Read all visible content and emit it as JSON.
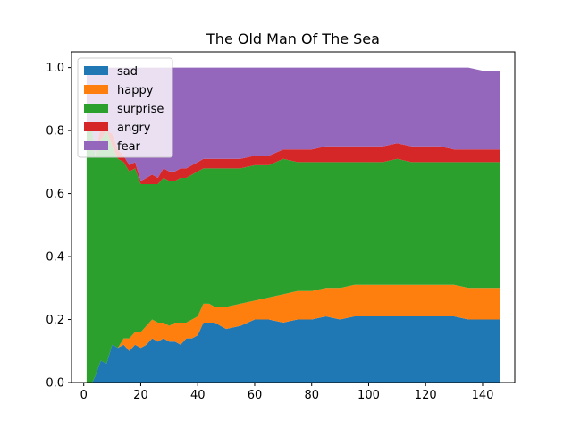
{
  "chart_data": {
    "type": "area",
    "stacked": true,
    "title": "The Old Man Of The Sea",
    "xlabel": "",
    "ylabel": "",
    "xlim": [
      -4.3,
      151.3
    ],
    "ylim": [
      0,
      1.05
    ],
    "x_ticks": [
      {
        "value": 0,
        "label": "0"
      },
      {
        "value": 20,
        "label": "20"
      },
      {
        "value": 40,
        "label": "40"
      },
      {
        "value": 60,
        "label": "60"
      },
      {
        "value": 80,
        "label": "80"
      },
      {
        "value": 100,
        "label": "100"
      },
      {
        "value": 120,
        "label": "120"
      },
      {
        "value": 140,
        "label": "140"
      }
    ],
    "y_ticks": [
      {
        "value": 0,
        "label": "0.0"
      },
      {
        "value": 0.2,
        "label": "0.2"
      },
      {
        "value": 0.4,
        "label": "0.4"
      },
      {
        "value": 0.6,
        "label": "0.6"
      },
      {
        "value": 0.8,
        "label": "0.8"
      },
      {
        "value": 1.0,
        "label": "1.0"
      }
    ],
    "grid": false,
    "legend_position": "top-left",
    "x": [
      1,
      3,
      4,
      6,
      8,
      10,
      12,
      14,
      16,
      18,
      20,
      22,
      24,
      26,
      28,
      30,
      32,
      34,
      36,
      38,
      40,
      42,
      44,
      46,
      48,
      50,
      55,
      60,
      65,
      70,
      75,
      80,
      85,
      90,
      95,
      100,
      105,
      110,
      115,
      120,
      125,
      130,
      135,
      140,
      146
    ],
    "series": [
      {
        "name": "sad",
        "color": "#1f77b4",
        "values": [
          0,
          0,
          0.02,
          0.07,
          0.06,
          0.12,
          0.11,
          0.12,
          0.1,
          0.12,
          0.11,
          0.12,
          0.14,
          0.13,
          0.14,
          0.13,
          0.13,
          0.12,
          0.14,
          0.14,
          0.15,
          0.19,
          0.19,
          0.19,
          0.18,
          0.17,
          0.18,
          0.2,
          0.2,
          0.19,
          0.2,
          0.2,
          0.21,
          0.2,
          0.21,
          0.21,
          0.21,
          0.21,
          0.21,
          0.21,
          0.21,
          0.21,
          0.2,
          0.2,
          0.2
        ]
      },
      {
        "name": "happy",
        "color": "#ff7f0e",
        "values": [
          0,
          0,
          0,
          0,
          0,
          0,
          0,
          0.02,
          0.04,
          0.04,
          0.05,
          0.06,
          0.06,
          0.06,
          0.05,
          0.05,
          0.06,
          0.07,
          0.05,
          0.06,
          0.06,
          0.06,
          0.06,
          0.05,
          0.06,
          0.07,
          0.07,
          0.06,
          0.07,
          0.09,
          0.09,
          0.09,
          0.09,
          0.1,
          0.1,
          0.1,
          0.1,
          0.1,
          0.1,
          0.1,
          0.1,
          0.1,
          0.1,
          0.1,
          0.1
        ]
      },
      {
        "name": "surprise",
        "color": "#2ca02c",
        "values": [
          0.8,
          0.8,
          0.7,
          0.7,
          0.74,
          0.63,
          0.6,
          0.56,
          0.53,
          0.52,
          0.47,
          0.45,
          0.43,
          0.44,
          0.46,
          0.46,
          0.45,
          0.46,
          0.46,
          0.46,
          0.46,
          0.43,
          0.43,
          0.44,
          0.44,
          0.44,
          0.43,
          0.43,
          0.42,
          0.43,
          0.41,
          0.41,
          0.4,
          0.4,
          0.39,
          0.39,
          0.39,
          0.4,
          0.39,
          0.39,
          0.39,
          0.39,
          0.4,
          0.4,
          0.4
        ]
      },
      {
        "name": "angry",
        "color": "#d62728",
        "values": [
          0,
          0,
          0,
          0.05,
          0,
          0.04,
          0.03,
          0.02,
          0.02,
          0.02,
          0.01,
          0.02,
          0.03,
          0.02,
          0.03,
          0.03,
          0.03,
          0.03,
          0.03,
          0.03,
          0.03,
          0.03,
          0.03,
          0.03,
          0.03,
          0.03,
          0.03,
          0.03,
          0.03,
          0.03,
          0.04,
          0.04,
          0.05,
          0.05,
          0.05,
          0.05,
          0.05,
          0.05,
          0.05,
          0.05,
          0.05,
          0.04,
          0.04,
          0.04,
          0.04
        ]
      },
      {
        "name": "fear",
        "color": "#9467bd",
        "values": [
          0.2,
          0.2,
          0.28,
          0.18,
          0.2,
          0.21,
          0.26,
          0.28,
          0.31,
          0.3,
          0.36,
          0.35,
          0.34,
          0.35,
          0.32,
          0.33,
          0.33,
          0.32,
          0.32,
          0.31,
          0.3,
          0.29,
          0.29,
          0.29,
          0.29,
          0.29,
          0.29,
          0.28,
          0.28,
          0.26,
          0.26,
          0.26,
          0.25,
          0.25,
          0.25,
          0.25,
          0.25,
          0.24,
          0.25,
          0.25,
          0.25,
          0.26,
          0.26,
          0.25,
          0.25
        ]
      }
    ]
  }
}
